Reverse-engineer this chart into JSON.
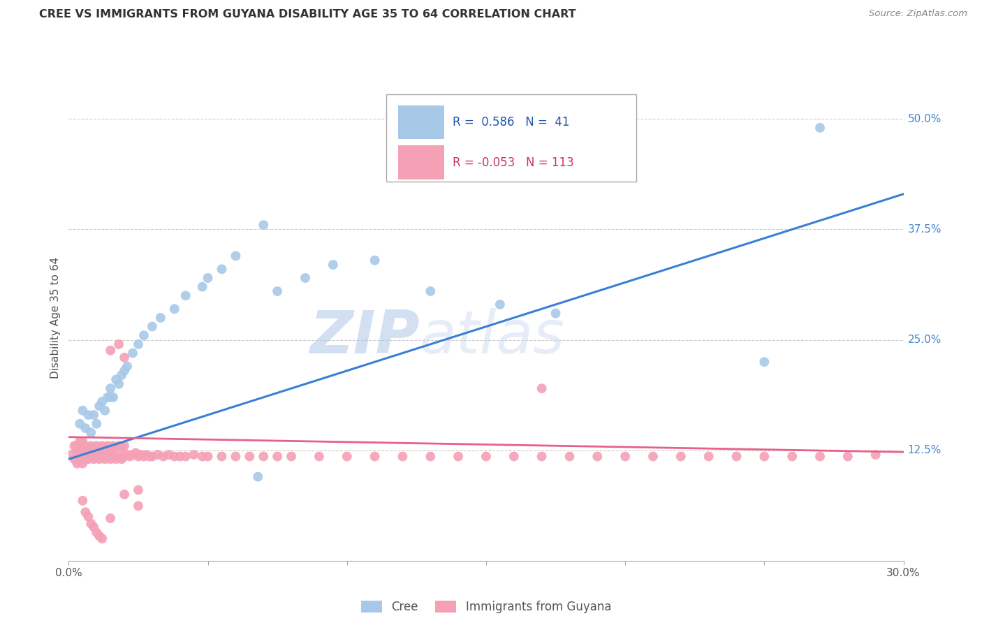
{
  "title": "CREE VS IMMIGRANTS FROM GUYANA DISABILITY AGE 35 TO 64 CORRELATION CHART",
  "source": "Source: ZipAtlas.com",
  "ylabel": "Disability Age 35 to 64",
  "xlim": [
    0.0,
    0.3
  ],
  "ylim": [
    0.0,
    0.55
  ],
  "yticks": [
    0.125,
    0.25,
    0.375,
    0.5
  ],
  "yticklabels": [
    "12.5%",
    "25.0%",
    "37.5%",
    "50.0%"
  ],
  "cree_R": 0.586,
  "cree_N": 41,
  "guyana_R": -0.053,
  "guyana_N": 113,
  "cree_color": "#a8c8e8",
  "guyana_color": "#f4a0b5",
  "cree_line_color": "#3a7fd5",
  "guyana_line_color": "#e8608a",
  "legend_label_cree": "Cree",
  "legend_label_guyana": "Immigrants from Guyana",
  "watermark_zip": "ZIP",
  "watermark_atlas": "atlas",
  "background_color": "#ffffff",
  "cree_line_x0": 0.0,
  "cree_line_y0": 0.115,
  "cree_line_x1": 0.3,
  "cree_line_y1": 0.415,
  "guyana_line_x0": 0.0,
  "guyana_line_y0": 0.14,
  "guyana_line_x1": 0.3,
  "guyana_line_y1": 0.123,
  "cree_x": [
    0.004,
    0.005,
    0.006,
    0.007,
    0.008,
    0.009,
    0.01,
    0.011,
    0.012,
    0.013,
    0.014,
    0.015,
    0.015,
    0.016,
    0.017,
    0.018,
    0.019,
    0.02,
    0.021,
    0.023,
    0.025,
    0.027,
    0.03,
    0.033,
    0.038,
    0.042,
    0.048,
    0.055,
    0.06,
    0.068,
    0.075,
    0.085,
    0.095,
    0.11,
    0.13,
    0.155,
    0.175,
    0.07,
    0.05,
    0.27,
    0.25
  ],
  "cree_y": [
    0.155,
    0.17,
    0.15,
    0.165,
    0.145,
    0.165,
    0.155,
    0.175,
    0.18,
    0.17,
    0.185,
    0.185,
    0.195,
    0.185,
    0.205,
    0.2,
    0.21,
    0.215,
    0.22,
    0.235,
    0.245,
    0.255,
    0.265,
    0.275,
    0.285,
    0.3,
    0.31,
    0.33,
    0.345,
    0.095,
    0.305,
    0.32,
    0.335,
    0.34,
    0.305,
    0.29,
    0.28,
    0.38,
    0.32,
    0.49,
    0.225
  ],
  "guyana_x": [
    0.001,
    0.002,
    0.002,
    0.003,
    0.003,
    0.003,
    0.004,
    0.004,
    0.004,
    0.005,
    0.005,
    0.005,
    0.006,
    0.006,
    0.006,
    0.007,
    0.007,
    0.007,
    0.008,
    0.008,
    0.008,
    0.009,
    0.009,
    0.009,
    0.01,
    0.01,
    0.01,
    0.011,
    0.011,
    0.011,
    0.012,
    0.012,
    0.012,
    0.013,
    0.013,
    0.013,
    0.014,
    0.014,
    0.015,
    0.015,
    0.015,
    0.016,
    0.016,
    0.017,
    0.017,
    0.018,
    0.018,
    0.019,
    0.019,
    0.02,
    0.02,
    0.021,
    0.022,
    0.023,
    0.024,
    0.025,
    0.026,
    0.027,
    0.028,
    0.029,
    0.03,
    0.032,
    0.034,
    0.036,
    0.038,
    0.04,
    0.042,
    0.045,
    0.048,
    0.05,
    0.055,
    0.06,
    0.065,
    0.07,
    0.075,
    0.08,
    0.09,
    0.1,
    0.11,
    0.12,
    0.13,
    0.14,
    0.15,
    0.16,
    0.17,
    0.18,
    0.19,
    0.2,
    0.21,
    0.22,
    0.23,
    0.24,
    0.25,
    0.26,
    0.27,
    0.28,
    0.29,
    0.018,
    0.015,
    0.02,
    0.005,
    0.006,
    0.007,
    0.008,
    0.009,
    0.01,
    0.011,
    0.012,
    0.015,
    0.02,
    0.025,
    0.025,
    0.17
  ],
  "guyana_y": [
    0.12,
    0.115,
    0.13,
    0.11,
    0.125,
    0.13,
    0.115,
    0.125,
    0.135,
    0.11,
    0.125,
    0.135,
    0.115,
    0.13,
    0.12,
    0.115,
    0.128,
    0.122,
    0.118,
    0.13,
    0.12,
    0.115,
    0.128,
    0.122,
    0.118,
    0.13,
    0.12,
    0.115,
    0.128,
    0.122,
    0.118,
    0.13,
    0.12,
    0.115,
    0.128,
    0.122,
    0.118,
    0.13,
    0.115,
    0.128,
    0.122,
    0.118,
    0.13,
    0.115,
    0.128,
    0.118,
    0.13,
    0.115,
    0.128,
    0.118,
    0.13,
    0.12,
    0.118,
    0.12,
    0.122,
    0.118,
    0.12,
    0.118,
    0.12,
    0.118,
    0.118,
    0.12,
    0.118,
    0.12,
    0.118,
    0.118,
    0.118,
    0.12,
    0.118,
    0.118,
    0.118,
    0.118,
    0.118,
    0.118,
    0.118,
    0.118,
    0.118,
    0.118,
    0.118,
    0.118,
    0.118,
    0.118,
    0.118,
    0.118,
    0.118,
    0.118,
    0.118,
    0.118,
    0.118,
    0.118,
    0.118,
    0.118,
    0.118,
    0.118,
    0.118,
    0.118,
    0.12,
    0.245,
    0.238,
    0.23,
    0.068,
    0.055,
    0.05,
    0.042,
    0.038,
    0.032,
    0.028,
    0.025,
    0.048,
    0.075,
    0.062,
    0.08,
    0.195
  ]
}
